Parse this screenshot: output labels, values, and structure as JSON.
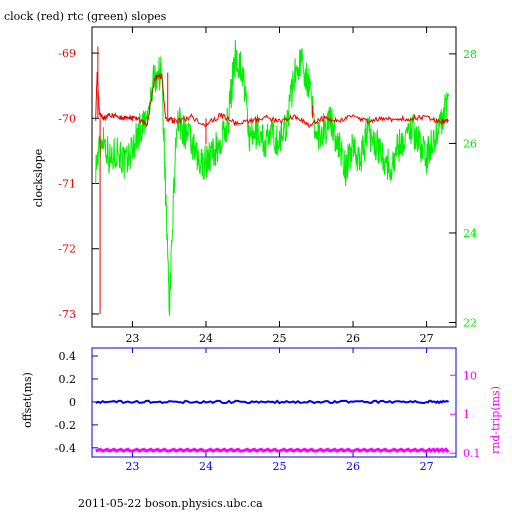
{
  "chart_data": [
    {
      "type": "line",
      "title": "clock (red) rtc (green) slopes",
      "ylabel": "clockslope",
      "xlim": [
        22.45,
        27.4
      ],
      "ylim_left": [
        -73.2,
        -68.6
      ],
      "ylim_right": [
        21.9,
        28.6
      ],
      "x_ticks": [
        "23",
        "24",
        "25",
        "26",
        "27"
      ],
      "y_ticks_left": [
        "-69",
        "-70",
        "-71",
        "-72",
        "-73"
      ],
      "y_ticks_right": [
        "28",
        "26",
        "24",
        "22"
      ],
      "colors": {
        "frame": "#000000",
        "clock": "#ee0000",
        "rtc": "#00ee00"
      },
      "series": [
        {
          "axis": "left",
          "x": [
            22.5,
            22.52,
            22.55,
            22.6,
            22.7,
            22.8,
            22.9,
            23.0,
            23.1,
            23.2,
            23.3,
            23.4,
            23.45,
            23.5,
            23.6,
            23.8,
            24.0,
            24.2,
            24.4,
            24.6,
            24.8,
            25.0,
            25.2,
            25.4,
            25.6,
            25.8,
            26.0,
            26.2,
            26.4,
            26.6,
            26.8,
            27.0,
            27.2,
            27.3
          ],
          "y": [
            -70.0,
            -69.3,
            -69.9,
            -70.0,
            -69.95,
            -69.98,
            -70.0,
            -70.0,
            -70.02,
            -70.1,
            -69.4,
            -69.35,
            -70.0,
            -70.02,
            -70.05,
            -69.98,
            -70.1,
            -69.95,
            -70.08,
            -70.05,
            -69.98,
            -70.05,
            -69.97,
            -70.1,
            -70.0,
            -70.03,
            -69.98,
            -70.05,
            -70.0,
            -70.02,
            -70.0,
            -69.98,
            -70.05,
            -70.03
          ]
        },
        {
          "axis": "right",
          "x": [
            22.5,
            22.6,
            22.7,
            22.8,
            22.9,
            23.0,
            23.1,
            23.2,
            23.3,
            23.4,
            23.45,
            23.5,
            23.6,
            23.7,
            23.8,
            23.9,
            24.0,
            24.1,
            24.2,
            24.3,
            24.4,
            24.5,
            24.6,
            24.7,
            24.8,
            24.9,
            25.0,
            25.1,
            25.2,
            25.3,
            25.4,
            25.5,
            25.6,
            25.7,
            25.8,
            25.9,
            26.0,
            26.1,
            26.2,
            26.3,
            26.4,
            26.5,
            26.6,
            26.7,
            26.8,
            26.9,
            27.0,
            27.1,
            27.2,
            27.3
          ],
          "y": [
            25.5,
            26.2,
            25.6,
            25.9,
            25.5,
            25.9,
            26.3,
            26.5,
            27.5,
            27.6,
            25.0,
            22.2,
            26.5,
            26.3,
            26.0,
            25.5,
            25.6,
            25.8,
            26.0,
            26.5,
            28.0,
            27.6,
            26.0,
            26.3,
            26.0,
            26.2,
            26.0,
            26.5,
            27.5,
            27.9,
            27.3,
            26.2,
            26.3,
            26.5,
            26.0,
            25.4,
            26.0,
            25.6,
            26.3,
            26.0,
            25.8,
            25.4,
            25.9,
            26.1,
            26.4,
            26.0,
            25.7,
            26.1,
            26.5,
            27.1
          ]
        }
      ]
    },
    {
      "type": "scatter",
      "ylabel_left": "offset(ms)",
      "ylabel_right": "rnd-trip(ms)",
      "xlim": [
        22.45,
        27.4
      ],
      "ylim_left": [
        -0.48,
        0.47
      ],
      "ylim_right_log": [
        0.08,
        50
      ],
      "x_ticks": [
        "23",
        "24",
        "25",
        "26",
        "27"
      ],
      "y_ticks_left": [
        "0.4",
        "0.2",
        "0",
        "-0.2",
        "-0.4"
      ],
      "y_ticks_right": [
        "10",
        "1",
        "0.1"
      ],
      "colors": {
        "frame": "#0000ee",
        "offset": "#0000ee",
        "roundtrip": "#ff00ff",
        "axis_right": "#ff00ff"
      },
      "series": [
        {
          "axis": "left",
          "x": [
            22.5,
            23.0,
            23.5,
            24.0,
            24.5,
            25.0,
            25.5,
            26.0,
            26.5,
            27.0,
            27.3
          ],
          "y": [
            0.0,
            0.0,
            0.0,
            0.0,
            0.0,
            0.0,
            0.0,
            0.0,
            0.0,
            0.0,
            0.0
          ]
        },
        {
          "axis": "right",
          "x": [
            22.5,
            23.0,
            23.5,
            24.0,
            24.5,
            25.0,
            25.5,
            26.0,
            26.5,
            27.0,
            27.3
          ],
          "y": [
            0.12,
            0.12,
            0.12,
            0.12,
            0.12,
            0.12,
            0.12,
            0.12,
            0.12,
            0.12,
            0.12
          ]
        }
      ]
    }
  ],
  "footer": "2011-05-22 boson.physics.ubc.ca"
}
